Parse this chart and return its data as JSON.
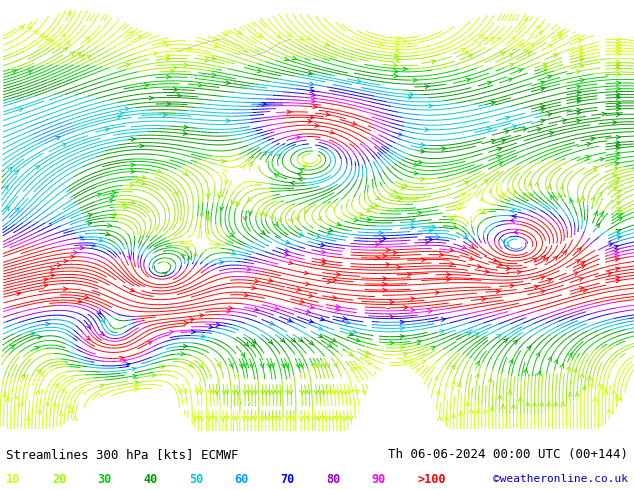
{
  "title_left": "Streamlines 300 hPa [kts] ECMWF",
  "title_right": "Th 06-06-2024 00:00 UTC (00+144)",
  "credit": "©weatheronline.co.uk",
  "legend_values": [
    "10",
    "20",
    "30",
    "40",
    "50",
    "60",
    "70",
    "80",
    "90",
    ">100"
  ],
  "legend_colors": [
    "#ccff00",
    "#99ff00",
    "#00cc00",
    "#009900",
    "#00cccc",
    "#0099ff",
    "#0000ff",
    "#9900cc",
    "#ff00ff",
    "#ff0000"
  ],
  "background_color": "#ffffff",
  "fig_width": 6.34,
  "fig_height": 4.9,
  "dpi": 100,
  "colormap_speeds": [
    10,
    20,
    30,
    40,
    50,
    60,
    70,
    80,
    90,
    100
  ],
  "colormap_hex": [
    "#ccff00",
    "#99ee00",
    "#00cc00",
    "#009900",
    "#00cccc",
    "#0099ff",
    "#0000ff",
    "#9900cc",
    "#ff00ff",
    "#ff0000"
  ],
  "bottom_bar_color": "#e8e8f0",
  "text_color_left": "#000000",
  "text_color_right": "#000000",
  "credit_color": "#0000cc"
}
